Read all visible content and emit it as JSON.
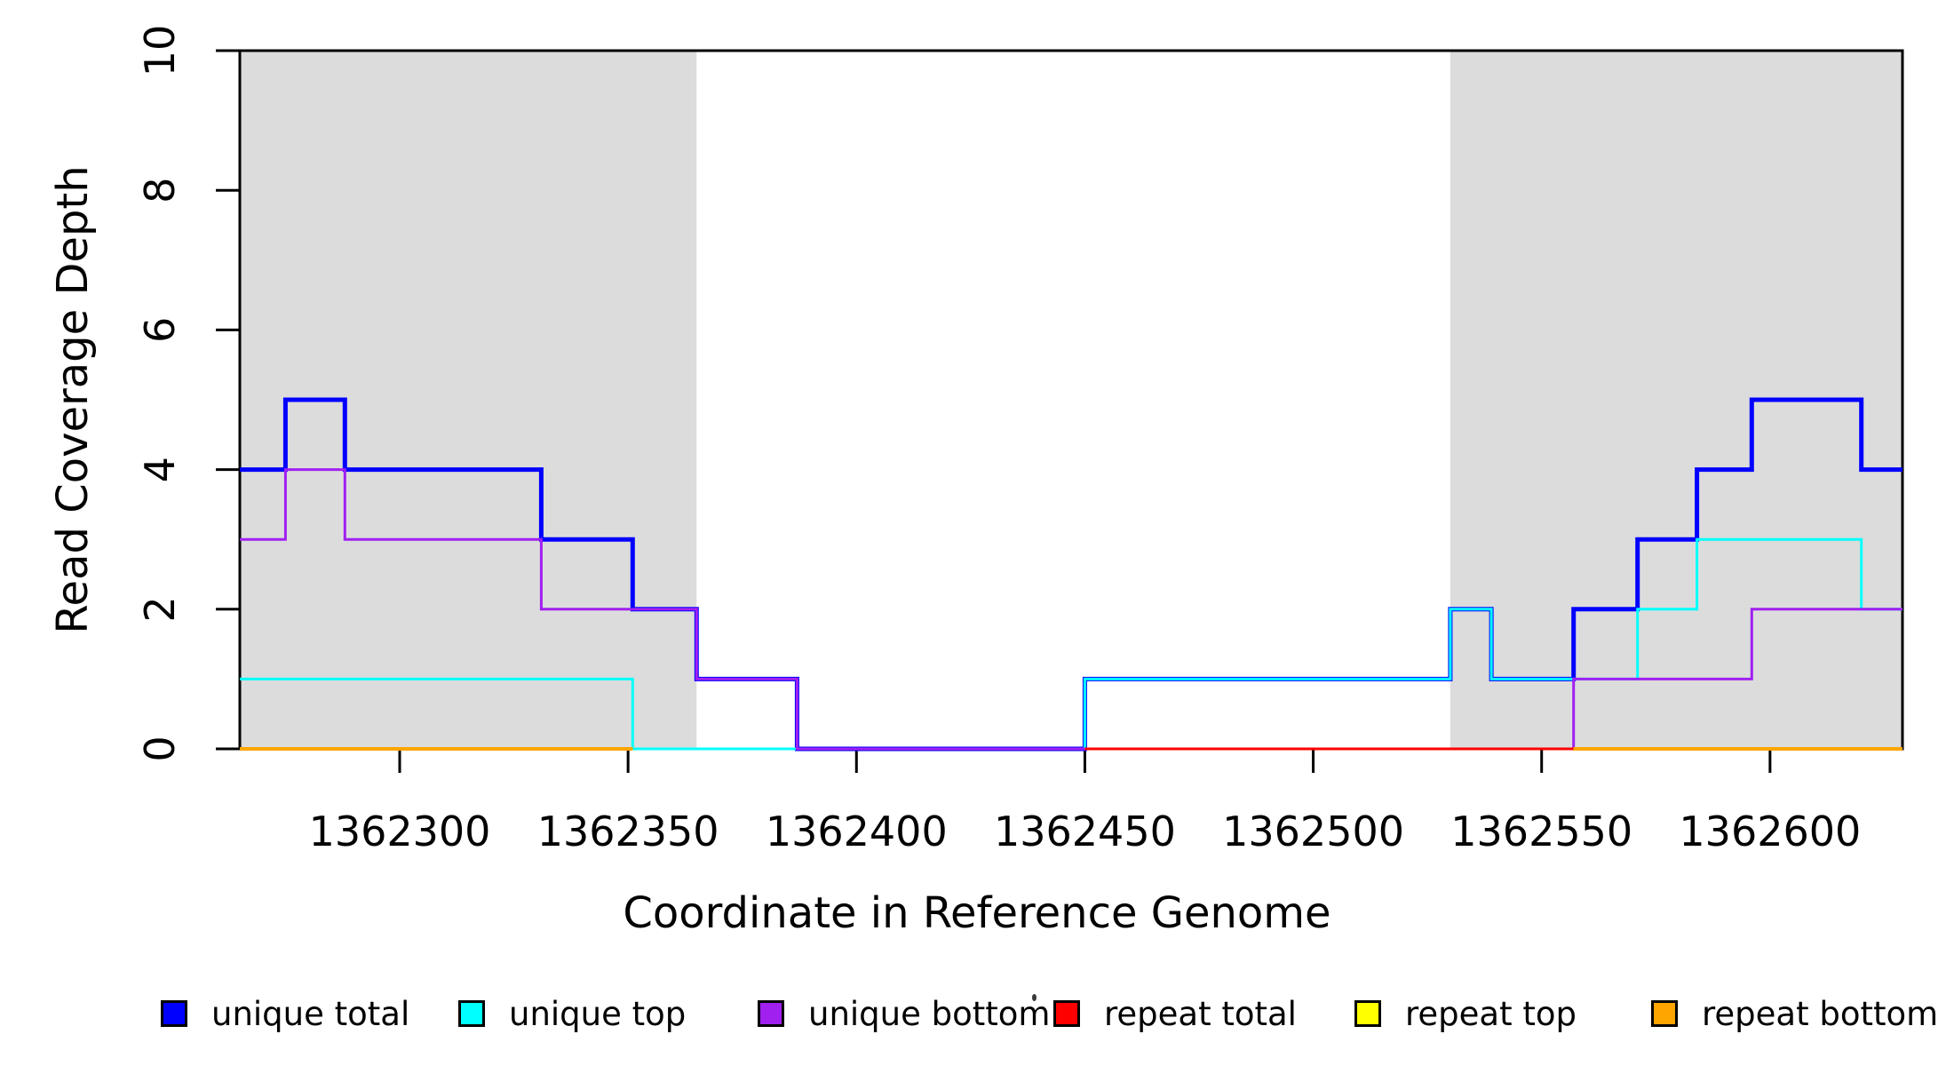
{
  "figure": {
    "background_color": "#FFFFFF",
    "shaded_region_color": "#DCDCDC",
    "axis_color": "#000000"
  },
  "chart_data": {
    "type": "line",
    "subtype": "step-coverage",
    "title": "",
    "xlabel": "Coordinate in Reference Genome",
    "ylabel": "Read Coverage Depth",
    "xlim": [
      1362265,
      1362629
    ],
    "ylim": [
      0,
      10
    ],
    "xticks": [
      1362300,
      1362350,
      1362400,
      1362450,
      1362500,
      1362550,
      1362600
    ],
    "yticks": [
      0,
      2,
      4,
      6,
      8,
      10
    ],
    "grid": false,
    "legend_position": "bottom",
    "step_mode": "after",
    "shaded_regions": [
      {
        "x0": 1362265,
        "x1": 1362365
      },
      {
        "x0": 1362530,
        "x1": 1362629
      }
    ],
    "series": [
      {
        "name": "unique total",
        "color": "#0000FF",
        "line_width": 5,
        "segments": [
          [
            [
              1362265,
              4
            ],
            [
              1362275,
              5
            ],
            [
              1362288,
              4
            ],
            [
              1362331,
              3
            ],
            [
              1362351,
              2
            ],
            [
              1362365,
              1
            ],
            [
              1362387,
              0
            ],
            [
              1362450,
              1
            ],
            [
              1362530,
              2
            ],
            [
              1362539,
              1
            ],
            [
              1362557,
              2
            ],
            [
              1362571,
              3
            ],
            [
              1362584,
              4
            ],
            [
              1362596,
              5
            ],
            [
              1362620,
              4
            ],
            [
              1362629,
              4
            ]
          ]
        ]
      },
      {
        "name": "unique top",
        "color": "#00FFFF",
        "line_width": 3,
        "segments": [
          [
            [
              1362265,
              1
            ],
            [
              1362351,
              0
            ],
            [
              1362450,
              1
            ],
            [
              1362530,
              2
            ],
            [
              1362539,
              1
            ],
            [
              1362571,
              2
            ],
            [
              1362584,
              3
            ],
            [
              1362620,
              2
            ],
            [
              1362629,
              2
            ]
          ]
        ]
      },
      {
        "name": "unique bottom",
        "color": "#A020F0",
        "line_width": 3,
        "segments": [
          [
            [
              1362265,
              3
            ],
            [
              1362275,
              4
            ],
            [
              1362288,
              3
            ],
            [
              1362331,
              2
            ],
            [
              1362365,
              1
            ],
            [
              1362387,
              0
            ],
            [
              1362557,
              1
            ],
            [
              1362596,
              2
            ],
            [
              1362629,
              2
            ]
          ]
        ]
      },
      {
        "name": "repeat total",
        "color": "#FF0000",
        "line_width": 3,
        "segments": [
          [
            [
              1362265,
              0
            ],
            [
              1362351,
              0
            ]
          ],
          [
            [
              1362450,
              0
            ],
            [
              1362629,
              0
            ]
          ]
        ]
      },
      {
        "name": "repeat top",
        "color": "#FFFF00",
        "line_width": 3,
        "segments": [
          [
            [
              1362265,
              0
            ],
            [
              1362351,
              0
            ]
          ],
          [
            [
              1362557,
              0
            ],
            [
              1362629,
              0
            ]
          ]
        ]
      },
      {
        "name": "repeat bottom",
        "color": "#FFA500",
        "line_width": 4,
        "segments": [
          [
            [
              1362265,
              0
            ],
            [
              1362351,
              0
            ]
          ],
          [
            [
              1362557,
              0
            ],
            [
              1362629,
              0
            ]
          ]
        ]
      }
    ]
  },
  "legend": {
    "items": [
      {
        "label": "unique total",
        "color": "#0000FF"
      },
      {
        "label": "unique top",
        "color": "#00FFFF"
      },
      {
        "label": "unique bottom",
        "color": "#A020F0"
      },
      {
        "label": "repeat total",
        "color": "#FF0000"
      },
      {
        "label": "repeat top",
        "color": "#FFFF00"
      },
      {
        "label": "repeat bottom",
        "color": "#FFA500"
      }
    ]
  }
}
